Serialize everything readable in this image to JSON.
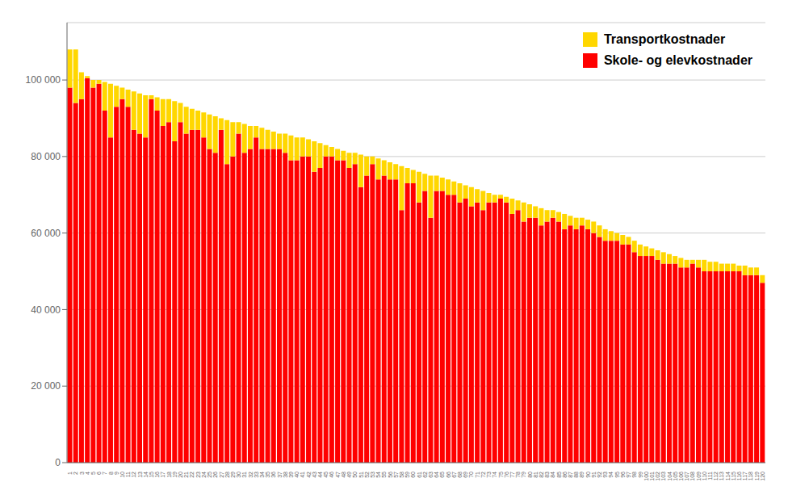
{
  "chart_data": {
    "type": "bar",
    "stacked": true,
    "grid": true,
    "legend": "upper right",
    "categories": [
      "1",
      "2",
      "3",
      "4",
      "5",
      "6",
      "7",
      "8",
      "9",
      "10",
      "11",
      "12",
      "13",
      "14",
      "15",
      "16",
      "17",
      "18",
      "19",
      "20",
      "21",
      "22",
      "23",
      "24",
      "25",
      "26",
      "27",
      "28",
      "29",
      "30",
      "31",
      "32",
      "33",
      "34",
      "35",
      "36",
      "37",
      "38",
      "39",
      "40",
      "41",
      "42",
      "43",
      "44",
      "45",
      "46",
      "47",
      "48",
      "49",
      "50",
      "51",
      "52",
      "53",
      "54",
      "55",
      "56",
      "57",
      "58",
      "59",
      "60",
      "61",
      "62",
      "63",
      "64",
      "65",
      "66",
      "67",
      "68",
      "69",
      "70",
      "71",
      "72",
      "73",
      "74",
      "75",
      "76",
      "77",
      "78",
      "79",
      "80",
      "81",
      "82",
      "83",
      "84",
      "85",
      "86",
      "87",
      "88",
      "89",
      "90",
      "91",
      "92",
      "93",
      "94",
      "95",
      "96",
      "97",
      "98",
      "99",
      "100",
      "101",
      "102",
      "103",
      "104",
      "105",
      "106",
      "107",
      "108",
      "109",
      "110",
      "111",
      "112",
      "113",
      "114",
      "115",
      "116",
      "117",
      "118",
      "119",
      "120"
    ],
    "series": [
      {
        "name": "Skole- og elevkostnader",
        "color": "#FF0000",
        "values": [
          98000,
          94000,
          95000,
          100500,
          98000,
          99000,
          92000,
          85000,
          93000,
          95000,
          93000,
          87000,
          86000,
          85000,
          95000,
          92000,
          88000,
          89000,
          84000,
          89000,
          86000,
          87000,
          87000,
          85000,
          82000,
          81000,
          87000,
          78000,
          80000,
          86000,
          81000,
          82000,
          85000,
          82000,
          82000,
          82000,
          82000,
          81000,
          79000,
          79000,
          80000,
          80000,
          76000,
          77000,
          80000,
          80000,
          79000,
          79000,
          77000,
          78000,
          72000,
          75000,
          78000,
          74000,
          75000,
          74000,
          74000,
          66000,
          73000,
          73000,
          68000,
          71000,
          64000,
          71000,
          71000,
          70000,
          70000,
          68000,
          69000,
          67000,
          68000,
          66000,
          68000,
          68000,
          69000,
          68000,
          65000,
          66000,
          63000,
          64000,
          64000,
          62000,
          63000,
          64000,
          63000,
          61000,
          62000,
          61000,
          62000,
          61000,
          60000,
          59000,
          58000,
          58000,
          58000,
          57000,
          57000,
          55000,
          54000,
          54000,
          54000,
          53000,
          52000,
          52000,
          52000,
          51000,
          51000,
          52000,
          51000,
          50000,
          50000,
          50000,
          50000,
          50000,
          50000,
          50000,
          49000,
          49000,
          49000,
          47000
        ]
      },
      {
        "name": "Transportkostnader",
        "color": "#FFD700",
        "values": [
          10000,
          14000,
          7000,
          500,
          2000,
          1000,
          7500,
          14000,
          5500,
          3000,
          4500,
          10000,
          10500,
          11000,
          1000,
          3500,
          7000,
          6000,
          10500,
          5000,
          7000,
          5500,
          5000,
          6500,
          9000,
          9500,
          3000,
          11500,
          9000,
          3000,
          7500,
          6000,
          3000,
          5500,
          5000,
          4500,
          4000,
          5000,
          6500,
          6000,
          5000,
          4500,
          8000,
          6500,
          3000,
          2500,
          3000,
          2500,
          4000,
          3000,
          8500,
          5000,
          2000,
          5500,
          4000,
          4500,
          4000,
          11500,
          4000,
          3500,
          8000,
          4500,
          11000,
          4000,
          3500,
          4000,
          3500,
          5000,
          3500,
          5000,
          3500,
          5000,
          2500,
          2000,
          1000,
          1500,
          4000,
          2500,
          5000,
          3500,
          3000,
          4500,
          3000,
          2000,
          2500,
          4000,
          2500,
          3000,
          2000,
          2500,
          3000,
          3000,
          3000,
          2500,
          2000,
          2500,
          2000,
          3000,
          3000,
          2500,
          2000,
          2500,
          3000,
          2500,
          2000,
          2500,
          2000,
          1000,
          2000,
          3000,
          2500,
          2500,
          2000,
          2000,
          2000,
          1500,
          2500,
          2000,
          2000,
          2000
        ]
      }
    ],
    "ylim": [
      0,
      115000
    ],
    "yticks": [
      0,
      {
        "value": 20000,
        "label": "20 000"
      },
      {
        "value": 40000,
        "label": "40 000"
      },
      {
        "value": 60000,
        "label": "60 000"
      },
      {
        "value": 80000,
        "label": "80 000"
      },
      {
        "value": 100000,
        "label": "100 000"
      }
    ]
  }
}
